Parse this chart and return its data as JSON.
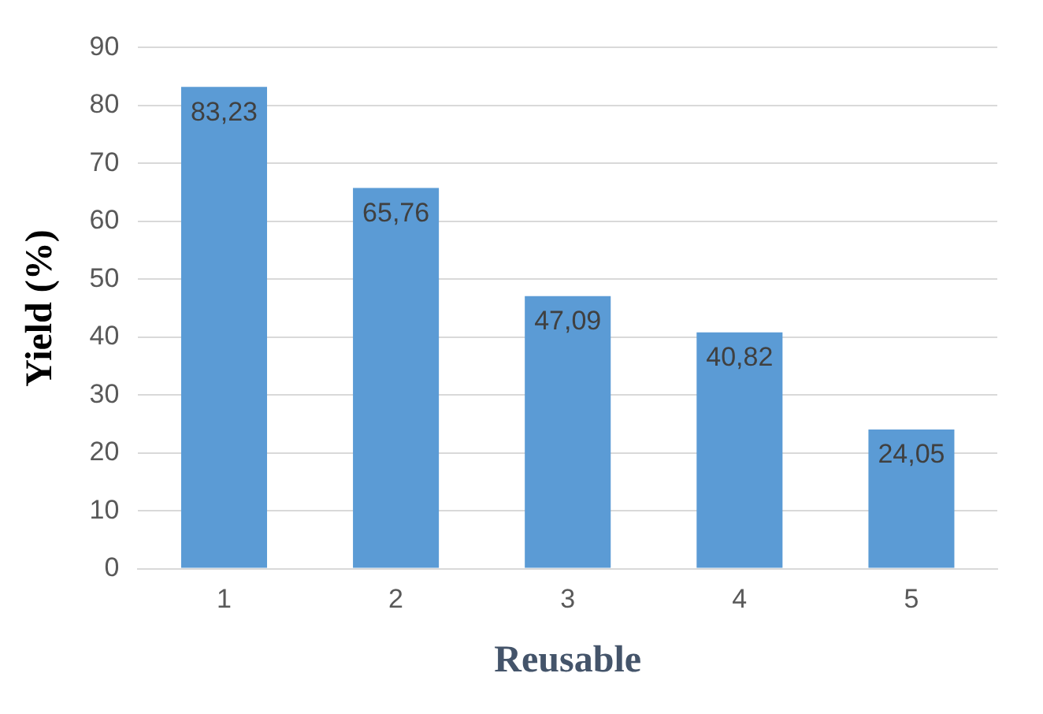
{
  "chart_data": {
    "type": "bar",
    "xlabel": "Reusable",
    "ylabel": "Yield (%)",
    "categories": [
      "1",
      "2",
      "3",
      "4",
      "5"
    ],
    "values": [
      83.23,
      65.76,
      47.09,
      40.82,
      24.05
    ],
    "value_labels": [
      "83,23",
      "65,76",
      "47,09",
      "40,82",
      "24,05"
    ],
    "color": "#5b9bd5",
    "ylim": [
      0,
      90
    ],
    "yticks": [
      0,
      10,
      20,
      30,
      40,
      50,
      60,
      70,
      80,
      90
    ],
    "grid": "y",
    "legend": false
  }
}
